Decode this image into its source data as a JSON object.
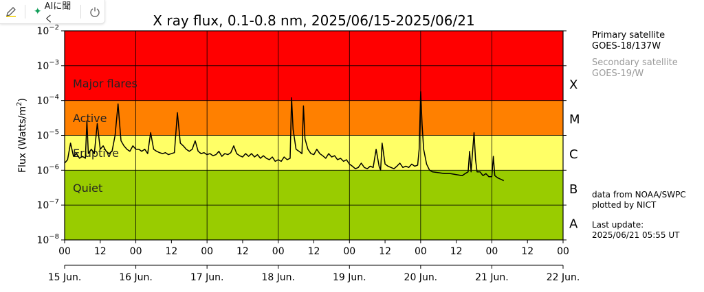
{
  "toolbar": {
    "edit_icon": "pencil-icon",
    "ai_label": "AIに聞く",
    "ai_icon": "sparkle-icon",
    "power_icon": "power-icon"
  },
  "side_info": {
    "primary_title": "Primary satellite",
    "primary_name": "GOES-18/137W",
    "secondary_title": "Secondary satellite",
    "secondary_name": "GOES-19/W",
    "data_source": "data from NOAA/SWPC",
    "plotted_by": "plotted by NICT",
    "update_label": "Last update:",
    "update_time": "2025/06/21 05:55 UT"
  },
  "chart_data": {
    "type": "line",
    "title": "X ray flux, 0.1-0.8 nm, 2025/06/15-2025/06/21",
    "ylabel_base": "Flux (Watts/m",
    "ylabel_sup": "2",
    "ylabel_end": ")",
    "yscale": "log",
    "ylim": [
      1e-08,
      0.01
    ],
    "y_ticks": [
      {
        "value": 1e-08,
        "base": "10",
        "exp": "−8"
      },
      {
        "value": 1e-07,
        "base": "10",
        "exp": "−7"
      },
      {
        "value": 1e-06,
        "base": "10",
        "exp": "−6"
      },
      {
        "value": 1e-05,
        "base": "10",
        "exp": "−5"
      },
      {
        "value": 0.0001,
        "base": "10",
        "exp": "−4"
      },
      {
        "value": 0.001,
        "base": "10",
        "exp": "−3"
      },
      {
        "value": 0.01,
        "base": "10",
        "exp": "−2"
      }
    ],
    "x_hours_range": [
      0,
      168
    ],
    "x_tick_labels": [
      {
        "hour": 0,
        "label": "00"
      },
      {
        "hour": 12,
        "label": "12"
      },
      {
        "hour": 24,
        "label": "00"
      },
      {
        "hour": 36,
        "label": "12"
      },
      {
        "hour": 48,
        "label": "00"
      },
      {
        "hour": 60,
        "label": "12"
      },
      {
        "hour": 72,
        "label": "00"
      },
      {
        "hour": 84,
        "label": "12"
      },
      {
        "hour": 96,
        "label": "00"
      },
      {
        "hour": 108,
        "label": "12"
      },
      {
        "hour": 120,
        "label": "00"
      },
      {
        "hour": 132,
        "label": "12"
      },
      {
        "hour": 144,
        "label": "00"
      },
      {
        "hour": 156,
        "label": "12"
      },
      {
        "hour": 168,
        "label": "00"
      }
    ],
    "x_day_labels": [
      {
        "hour": 0,
        "label": "15 Jun."
      },
      {
        "hour": 24,
        "label": "16 Jun."
      },
      {
        "hour": 48,
        "label": "17 Jun."
      },
      {
        "hour": 72,
        "label": "18 Jun."
      },
      {
        "hour": 96,
        "label": "19 Jun."
      },
      {
        "hour": 120,
        "label": "20 Jun."
      },
      {
        "hour": 144,
        "label": "21 Jun."
      },
      {
        "hour": 168,
        "label": "22 Jun."
      }
    ],
    "bands": [
      {
        "from": 0.0001,
        "to": 0.01,
        "color": "#ff0000",
        "label": "Major flares"
      },
      {
        "from": 1e-05,
        "to": 0.0001,
        "color": "#ff8000",
        "label": "Active"
      },
      {
        "from": 1e-06,
        "to": 1e-05,
        "color": "#ffff66",
        "label": "Eruptive"
      },
      {
        "from": 1e-08,
        "to": 1e-06,
        "color": "#99cc00",
        "label": "Quiet"
      }
    ],
    "classes": [
      {
        "label": "X",
        "value": 0.0003
      },
      {
        "label": "M",
        "value": 3e-05
      },
      {
        "label": "C",
        "value": 3e-06
      },
      {
        "label": "B",
        "value": 3e-07
      },
      {
        "label": "A",
        "value": 3e-08
      }
    ],
    "grid": true,
    "series": [
      {
        "color": "#000000",
        "points": [
          [
            0,
            1.6e-06
          ],
          [
            1,
            2e-06
          ],
          [
            2,
            6e-06
          ],
          [
            3,
            2.5e-06
          ],
          [
            4,
            3e-06
          ],
          [
            5,
            2.2e-06
          ],
          [
            6,
            2.5e-06
          ],
          [
            7,
            2.2e-06
          ],
          [
            7.5,
            2.6e-05
          ],
          [
            8,
            3e-06
          ],
          [
            9,
            4e-06
          ],
          [
            10,
            3e-06
          ],
          [
            11,
            2.2e-05
          ],
          [
            12,
            4e-06
          ],
          [
            13,
            5e-06
          ],
          [
            14,
            3.5e-06
          ],
          [
            15,
            3e-06
          ],
          [
            16,
            3.5e-06
          ],
          [
            17,
            1e-05
          ],
          [
            18,
            8e-05
          ],
          [
            19,
            7e-06
          ],
          [
            20,
            5e-06
          ],
          [
            21,
            4e-06
          ],
          [
            22,
            3.5e-06
          ],
          [
            23,
            5e-06
          ],
          [
            24,
            4e-06
          ],
          [
            25,
            4e-06
          ],
          [
            26,
            3.5e-06
          ],
          [
            27,
            4e-06
          ],
          [
            28,
            3e-06
          ],
          [
            29,
            1.2e-05
          ],
          [
            30,
            4e-06
          ],
          [
            31,
            3.5e-06
          ],
          [
            32,
            3.2e-06
          ],
          [
            33,
            3e-06
          ],
          [
            34,
            3.2e-06
          ],
          [
            35,
            2.8e-06
          ],
          [
            36,
            3e-06
          ],
          [
            37,
            3.2e-06
          ],
          [
            38,
            4.5e-05
          ],
          [
            39,
            6e-06
          ],
          [
            40,
            5e-06
          ],
          [
            41,
            4e-06
          ],
          [
            42,
            3.5e-06
          ],
          [
            43,
            4e-06
          ],
          [
            44,
            7e-06
          ],
          [
            45,
            3.5e-06
          ],
          [
            46,
            3e-06
          ],
          [
            47,
            3.2e-06
          ],
          [
            48,
            2.8e-06
          ],
          [
            49,
            3e-06
          ],
          [
            50,
            2.6e-06
          ],
          [
            51,
            2.8e-06
          ],
          [
            52,
            3.5e-06
          ],
          [
            53,
            2.5e-06
          ],
          [
            54,
            3e-06
          ],
          [
            55,
            2.8e-06
          ],
          [
            56,
            3.2e-06
          ],
          [
            57,
            5e-06
          ],
          [
            58,
            3e-06
          ],
          [
            59,
            2.6e-06
          ],
          [
            60,
            2.4e-06
          ],
          [
            61,
            3e-06
          ],
          [
            62,
            2.5e-06
          ],
          [
            63,
            3e-06
          ],
          [
            64,
            2.4e-06
          ],
          [
            65,
            2.8e-06
          ],
          [
            66,
            2.2e-06
          ],
          [
            67,
            2.6e-06
          ],
          [
            68,
            2.2e-06
          ],
          [
            69,
            2e-06
          ],
          [
            70,
            2.4e-06
          ],
          [
            71,
            1.8e-06
          ],
          [
            72,
            2e-06
          ],
          [
            73,
            1.8e-06
          ],
          [
            74,
            2.4e-06
          ],
          [
            75,
            2e-06
          ],
          [
            76,
            2.2e-06
          ],
          [
            76.5,
            0.00012
          ],
          [
            77,
            1.5e-05
          ],
          [
            78,
            4e-06
          ],
          [
            79,
            3.5e-06
          ],
          [
            80,
            3e-06
          ],
          [
            80.5,
            7e-05
          ],
          [
            81,
            8e-06
          ],
          [
            82,
            4e-06
          ],
          [
            83,
            3e-06
          ],
          [
            84,
            2.8e-06
          ],
          [
            85,
            4e-06
          ],
          [
            86,
            3e-06
          ],
          [
            87,
            2.6e-06
          ],
          [
            88,
            2.2e-06
          ],
          [
            89,
            3e-06
          ],
          [
            90,
            2.4e-06
          ],
          [
            91,
            2.6e-06
          ],
          [
            92,
            2e-06
          ],
          [
            93,
            2.2e-06
          ],
          [
            94,
            1.8e-06
          ],
          [
            95,
            2e-06
          ],
          [
            96,
            1.5e-06
          ],
          [
            97,
            1.3e-06
          ],
          [
            98,
            1.1e-06
          ],
          [
            99,
            1.2e-06
          ],
          [
            100,
            1.6e-06
          ],
          [
            101,
            1.2e-06
          ],
          [
            102,
            1.1e-06
          ],
          [
            103,
            1.3e-06
          ],
          [
            104,
            1.2e-06
          ],
          [
            105,
            4e-06
          ],
          [
            106,
            1.3e-06
          ],
          [
            106.5,
            1e-06
          ],
          [
            107,
            6e-06
          ],
          [
            108,
            1.5e-06
          ],
          [
            109,
            1.3e-06
          ],
          [
            110,
            1.2e-06
          ],
          [
            111,
            1.1e-06
          ],
          [
            112,
            1.3e-06
          ],
          [
            113,
            1.6e-06
          ],
          [
            114,
            1.2e-06
          ],
          [
            115,
            1.3e-06
          ],
          [
            116,
            1.2e-06
          ],
          [
            117,
            1.5e-06
          ],
          [
            118,
            1.3e-06
          ],
          [
            119,
            1.4e-06
          ],
          [
            119.5,
            4e-06
          ],
          [
            120,
            0.00018
          ],
          [
            120.5,
            2e-05
          ],
          [
            121,
            4e-06
          ],
          [
            122,
            1.5e-06
          ],
          [
            123,
            1e-06
          ],
          [
            124,
            9e-07
          ],
          [
            126,
            8.5e-07
          ],
          [
            128,
            8e-07
          ],
          [
            130,
            8e-07
          ],
          [
            132,
            7.5e-07
          ],
          [
            134,
            7e-07
          ],
          [
            135,
            8e-07
          ],
          [
            136,
            9e-07
          ],
          [
            136.5,
            3.5e-06
          ],
          [
            137,
            9e-07
          ],
          [
            138,
            1.2e-05
          ],
          [
            138.5,
            2e-06
          ],
          [
            139,
            9e-07
          ],
          [
            140,
            9e-07
          ],
          [
            141,
            7e-07
          ],
          [
            142,
            8e-07
          ],
          [
            143,
            6.5e-07
          ],
          [
            144,
            6.5e-07
          ],
          [
            144.5,
            2.5e-06
          ],
          [
            145,
            7e-07
          ],
          [
            146,
            6e-07
          ],
          [
            147,
            5.5e-07
          ],
          [
            148,
            5e-07
          ]
        ]
      }
    ]
  }
}
